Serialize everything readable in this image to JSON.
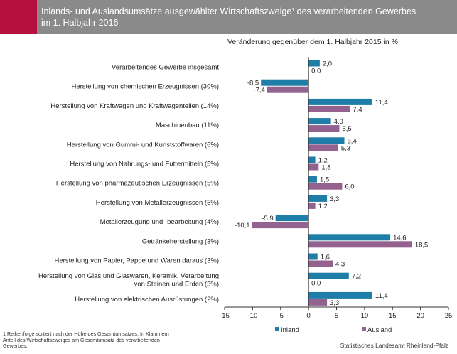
{
  "header": {
    "title_line1": "Inlands- und Auslandsumsätze ausgewählter Wirtschaftszweige",
    "title_sup": "1",
    "title_line1_end": " des verarbeitenden Gewerbes",
    "title_line2": "im 1. Halbjahr 2016"
  },
  "footnote": "1 Reihenfolge sortiert nach der Höhe des Gesamtumsatzes. In Klammern Anteil des Wirtschaftszweiges am Gesamtumsatz des verarbeitenden Gewerbes.",
  "source": "Statistisches Landesamt Rheinland-Pfalz",
  "colors": {
    "inland": "#1f7ea8",
    "ausland": "#93628f"
  },
  "chart_data": {
    "type": "bar",
    "orientation": "horizontal",
    "subtitle": "Veränderung gegenüber dem 1. Halbjahr 2015  in %",
    "categories": [
      "Verarbeitendes Gewerbe insgesamt",
      "Herstellung von chemischen Erzeugnissen (30%)",
      "Herstellung von Kraftwagen und Kraftwagenteilen (14%)",
      "Maschinenbau (11%)",
      "Herstellung von Gummi- und Kunststoffwaren (6%)",
      "Herstellung von Nahrungs- und Futtermitteln (5%)",
      "Herstellung von pharmazeutischen Erzeugnissen (5%)",
      "Herstellung von Metallerzeugnissen (5%)",
      "Metallerzeugung und -bearbeitung (4%)",
      "Getränkeherstellung (3%)",
      "Herstellung von Papier, Pappe und Waren daraus (3%)",
      "Herstellung von Glas und Glaswaren, Keramik, Verarbeitung von Steinen und Erden (3%)",
      "Herstellung von elektrischen Ausrüstungen (2%)"
    ],
    "series": [
      {
        "name": "Inland",
        "values": [
          2.0,
          -8.5,
          11.4,
          4.0,
          6.4,
          1.2,
          1.5,
          3.3,
          -5.9,
          14.6,
          1.6,
          7.2,
          11.4
        ],
        "labels": [
          "2,0",
          "-8,5",
          "11,4",
          "4,0",
          "6,4",
          "1,2",
          "1,5",
          "3,3",
          "-5,9",
          "14,6",
          "1,6",
          "7,2",
          "11,4"
        ]
      },
      {
        "name": "Ausland",
        "values": [
          0.0,
          -7.4,
          7.4,
          5.5,
          5.3,
          1.8,
          6.0,
          1.2,
          -10.1,
          18.5,
          4.3,
          0.0,
          3.3
        ],
        "labels": [
          "0,0",
          "-7,4",
          "7,4",
          "5,5",
          "5,3",
          "1,8",
          "6,0",
          "1,2",
          "-10,1",
          "18,5",
          "4,3",
          "0,0",
          "3,3"
        ]
      }
    ],
    "xlim": [
      -15,
      25
    ],
    "xticks": [
      -15,
      -10,
      -5,
      0,
      5,
      10,
      15,
      20,
      25
    ],
    "xtick_labels": [
      "-15",
      "-10",
      "-5",
      "0",
      "5",
      "10",
      "15",
      "20",
      "25"
    ],
    "legend_placement": "bottom",
    "grid": false
  }
}
